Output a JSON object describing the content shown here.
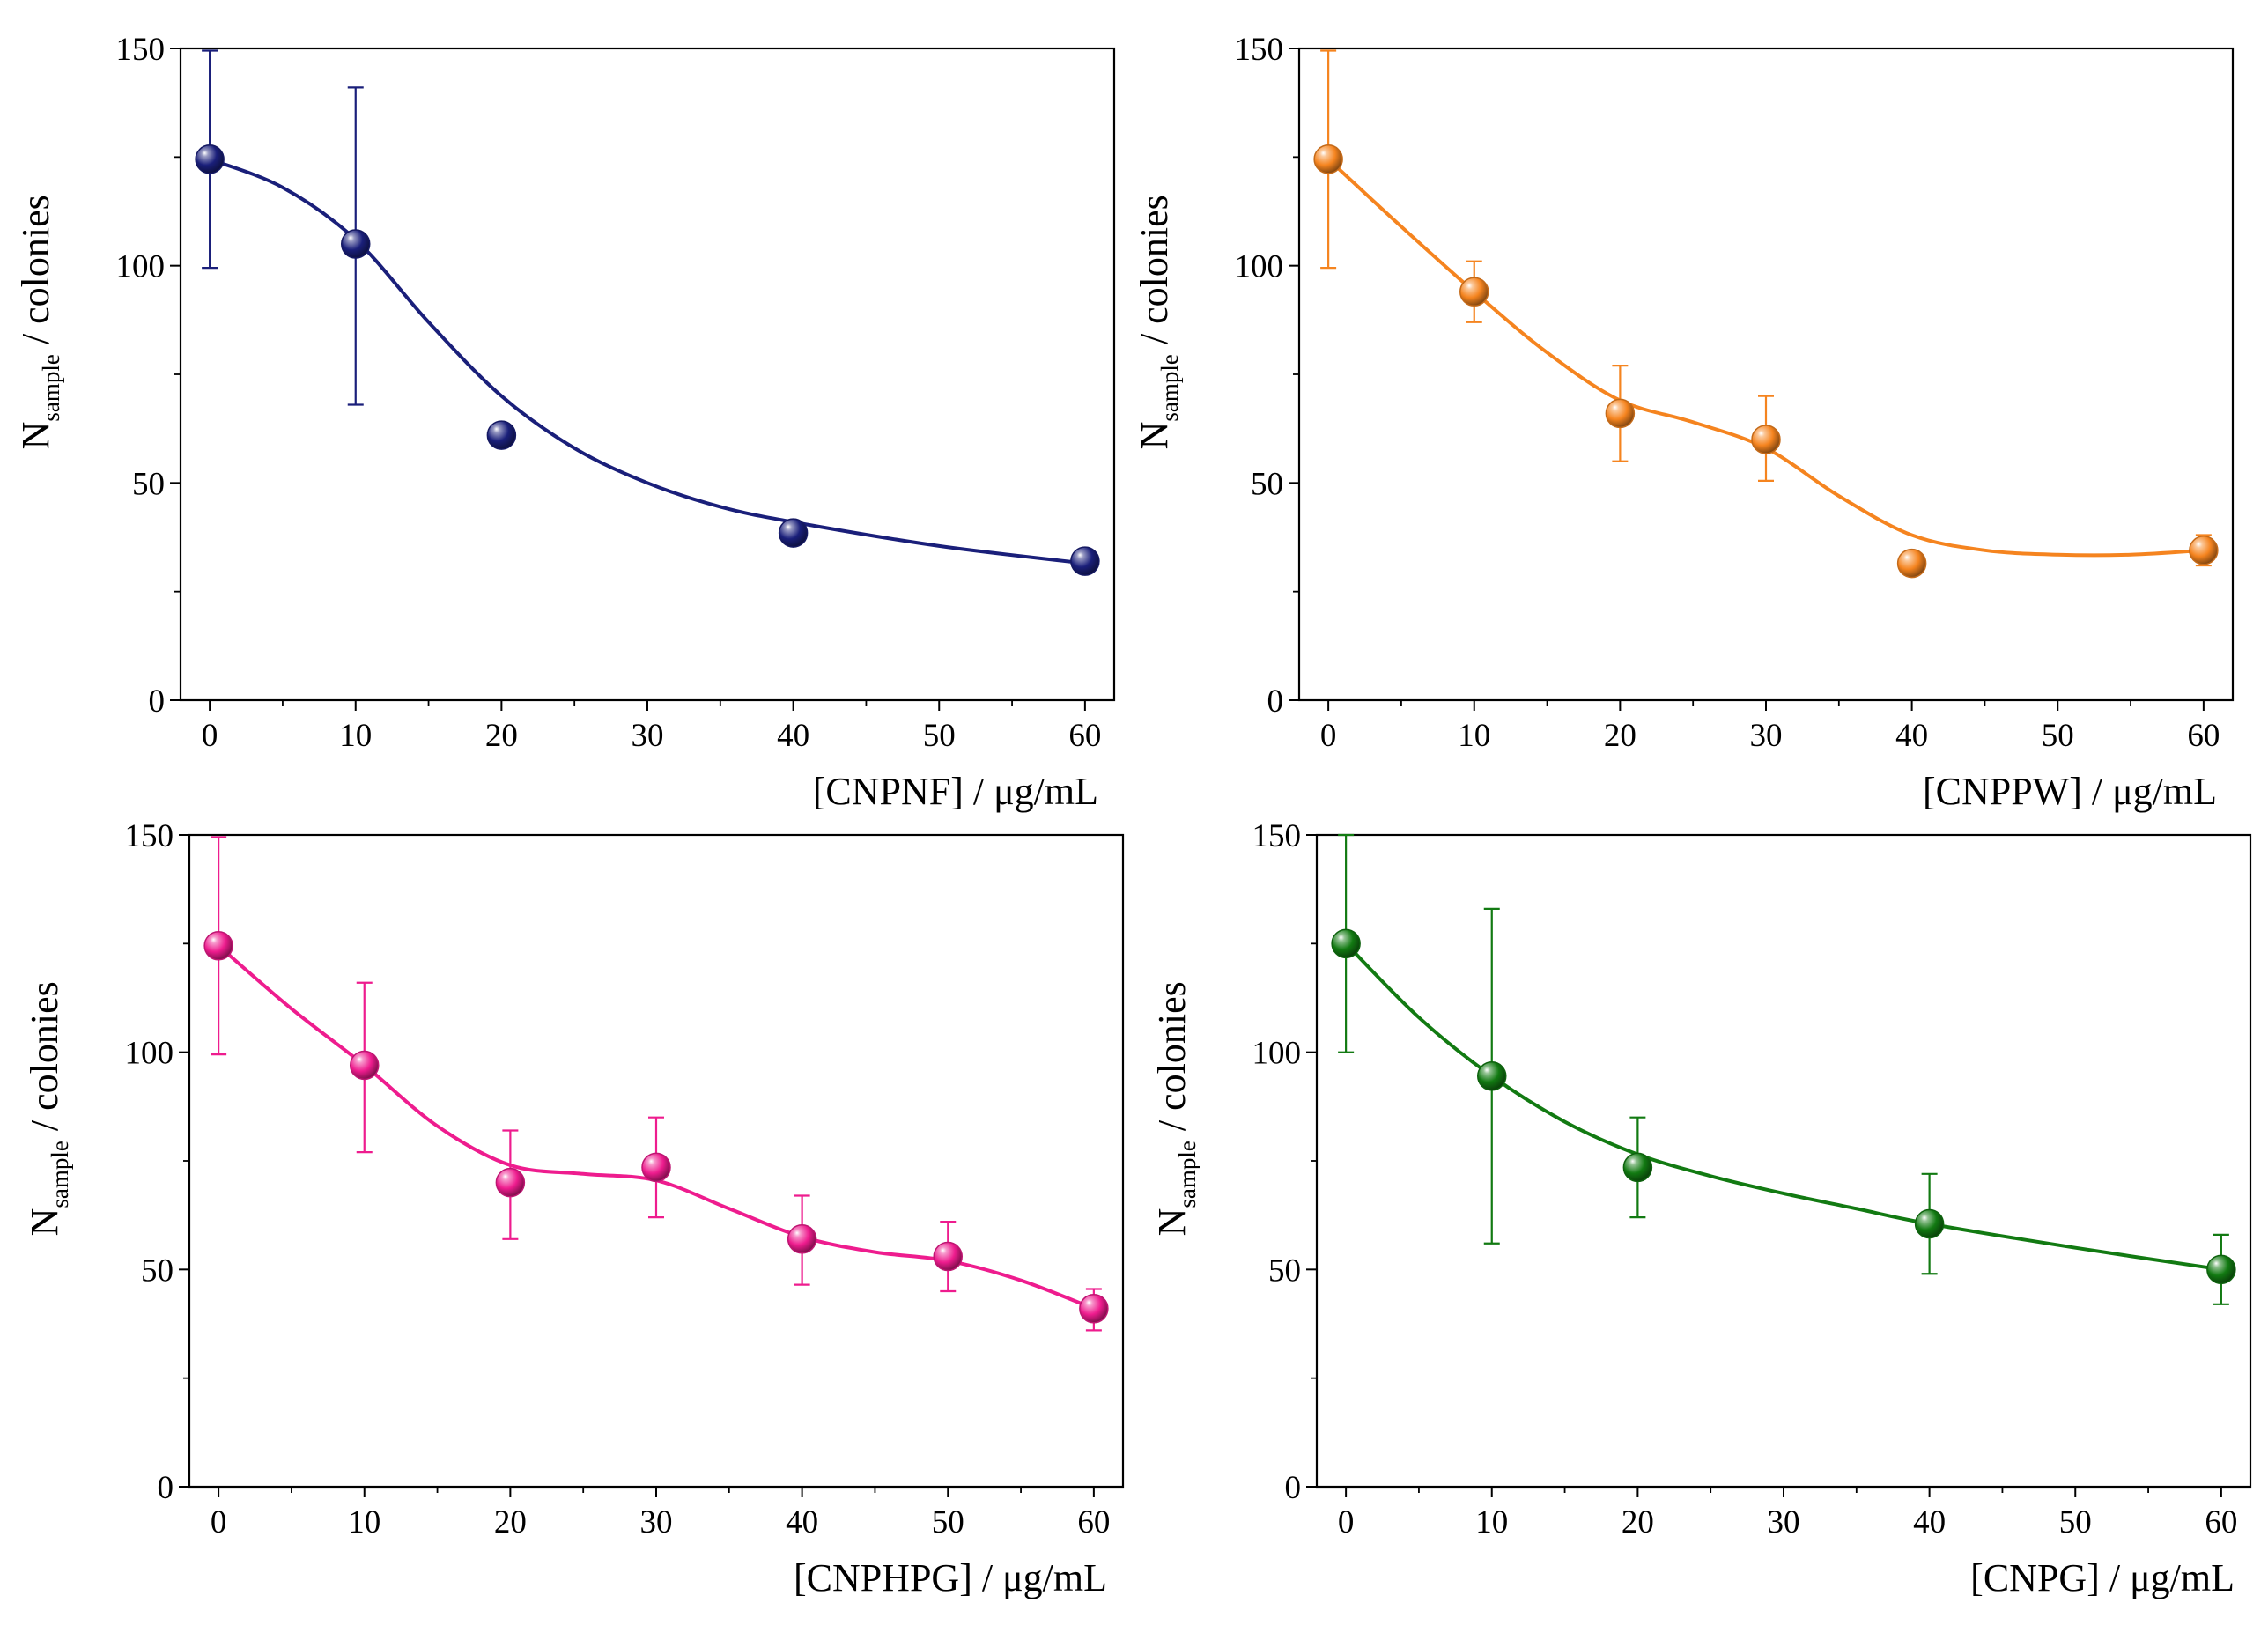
{
  "chart_data": [
    {
      "type": "scatter",
      "name": "CNPNF",
      "color": "#1a1f7a",
      "x": [
        0,
        10,
        20,
        40,
        60
      ],
      "y": [
        124.5,
        105,
        61,
        38.5,
        32
      ],
      "err_low": [
        99.5,
        68,
        null,
        null,
        null
      ],
      "err_high": [
        149.5,
        141,
        null,
        null,
        null
      ],
      "fit_curve": [
        [
          0,
          124.5
        ],
        [
          5,
          118
        ],
        [
          10,
          106
        ],
        [
          15,
          87
        ],
        [
          20,
          70
        ],
        [
          25,
          58
        ],
        [
          30,
          50
        ],
        [
          35,
          44.5
        ],
        [
          40,
          41
        ],
        [
          50,
          35.5
        ],
        [
          60,
          31.5
        ]
      ],
      "xlabel": "[CNPNF] / μg/mL",
      "ylabel_main": "N",
      "ylabel_sub": "sample",
      "ylabel_rest": " / colonies",
      "xticks": [
        0,
        10,
        20,
        30,
        40,
        50,
        60
      ],
      "yticks": [
        0,
        50,
        100,
        150
      ],
      "xlim": [
        -2,
        62
      ],
      "ylim": [
        0,
        150
      ]
    },
    {
      "type": "scatter",
      "name": "CNPPW",
      "color": "#f5841f",
      "x": [
        0,
        10,
        20,
        30,
        40,
        60
      ],
      "y": [
        124.5,
        94,
        66,
        60,
        31.5,
        34.5
      ],
      "err_low": [
        99.5,
        87,
        55,
        50.5,
        30,
        31
      ],
      "err_high": [
        149.5,
        101,
        77,
        70,
        34,
        38
      ],
      "fit_curve": [
        [
          0,
          124.5
        ],
        [
          5,
          109
        ],
        [
          10,
          94
        ],
        [
          15,
          80
        ],
        [
          20,
          69
        ],
        [
          25,
          64
        ],
        [
          30,
          58
        ],
        [
          35,
          47
        ],
        [
          40,
          38
        ],
        [
          45,
          34.5
        ],
        [
          50,
          33.5
        ],
        [
          55,
          33.5
        ],
        [
          60,
          34.5
        ]
      ],
      "xlabel": "[CNPPW] / μg/mL",
      "ylabel_main": "N",
      "ylabel_sub": "sample",
      "ylabel_rest": " / colonies",
      "xticks": [
        0,
        10,
        20,
        30,
        40,
        50,
        60
      ],
      "yticks": [
        0,
        50,
        100,
        150
      ],
      "xlim": [
        -2,
        62
      ],
      "ylim": [
        0,
        150
      ]
    },
    {
      "type": "scatter",
      "name": "CNPHPG",
      "color": "#ee1c8e",
      "x": [
        0,
        10,
        20,
        30,
        40,
        50,
        60
      ],
      "y": [
        124.5,
        97,
        70,
        73.5,
        57,
        53,
        41
      ],
      "err_low": [
        99.5,
        77,
        57,
        62,
        46.5,
        45,
        36
      ],
      "err_high": [
        149.5,
        116,
        82,
        85,
        67,
        61,
        45.5
      ],
      "fit_curve": [
        [
          0,
          124.5
        ],
        [
          5,
          110
        ],
        [
          10,
          97
        ],
        [
          15,
          83
        ],
        [
          20,
          74
        ],
        [
          25,
          72
        ],
        [
          30,
          70.5
        ],
        [
          35,
          64
        ],
        [
          40,
          57.5
        ],
        [
          45,
          54
        ],
        [
          50,
          52
        ],
        [
          55,
          47.5
        ],
        [
          60,
          41
        ]
      ],
      "xlabel": "[CNPHPG] / μg/mL",
      "ylabel_main": "N",
      "ylabel_sub": "sample",
      "ylabel_rest": " / colonies",
      "xticks": [
        0,
        10,
        20,
        30,
        40,
        50,
        60
      ],
      "yticks": [
        0,
        50,
        100,
        150
      ],
      "xlim": [
        -2,
        62
      ],
      "ylim": [
        0,
        150
      ]
    },
    {
      "type": "scatter",
      "name": "CNPG",
      "color": "#127a12",
      "x": [
        0,
        10,
        20,
        40,
        60
      ],
      "y": [
        125,
        94.5,
        73.5,
        60.5,
        50
      ],
      "err_low": [
        100,
        56,
        62,
        49,
        42
      ],
      "err_high": [
        150,
        133,
        85,
        72,
        58
      ],
      "fit_curve": [
        [
          0,
          125
        ],
        [
          5,
          108
        ],
        [
          10,
          94.5
        ],
        [
          15,
          84
        ],
        [
          20,
          76.5
        ],
        [
          25,
          71.5
        ],
        [
          30,
          67.5
        ],
        [
          35,
          64
        ],
        [
          40,
          60.5
        ],
        [
          50,
          55
        ],
        [
          60,
          50
        ]
      ],
      "xlabel": "[CNPG] / μg/mL",
      "ylabel_main": "N",
      "ylabel_sub": "sample",
      "ylabel_rest": " / colonies",
      "xticks": [
        0,
        10,
        20,
        30,
        40,
        50,
        60
      ],
      "yticks": [
        0,
        50,
        100,
        150
      ],
      "xlim": [
        -2,
        62
      ],
      "ylim": [
        0,
        150
      ]
    }
  ]
}
